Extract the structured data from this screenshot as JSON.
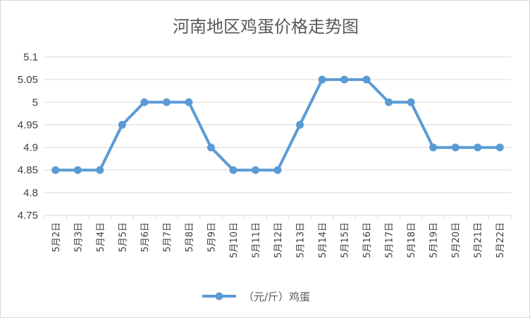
{
  "chart_data": {
    "type": "line",
    "title": "河南地区鸡蛋价格走势图",
    "xlabel": "",
    "ylabel": "",
    "categories": [
      "5月2日",
      "5月3日",
      "5月4日",
      "5月5日",
      "5月6日",
      "5月7日",
      "5月8日",
      "5月9日",
      "5月10日",
      "5月11日",
      "5月12日",
      "5月13日",
      "5月14日",
      "5月15日",
      "5月16日",
      "5月17日",
      "5月18日",
      "5月19日",
      "5月20日",
      "5月21日",
      "5月22日"
    ],
    "series": [
      {
        "name": "（元/斤）鸡蛋",
        "values": [
          4.85,
          4.85,
          4.85,
          4.95,
          5.0,
          5.0,
          5.0,
          4.9,
          4.85,
          4.85,
          4.85,
          4.95,
          5.05,
          5.05,
          5.05,
          5.0,
          5.0,
          4.9,
          4.9,
          4.9,
          4.9
        ],
        "color": "#5b9bd5"
      }
    ],
    "ylim": [
      4.75,
      5.1
    ],
    "yticks": [
      "4.75",
      "4.8",
      "4.85",
      "4.9",
      "4.95",
      "5",
      "5.05",
      "5.1"
    ],
    "grid": true,
    "legend": "bottom",
    "gridline_color": "#d9d9d9"
  }
}
